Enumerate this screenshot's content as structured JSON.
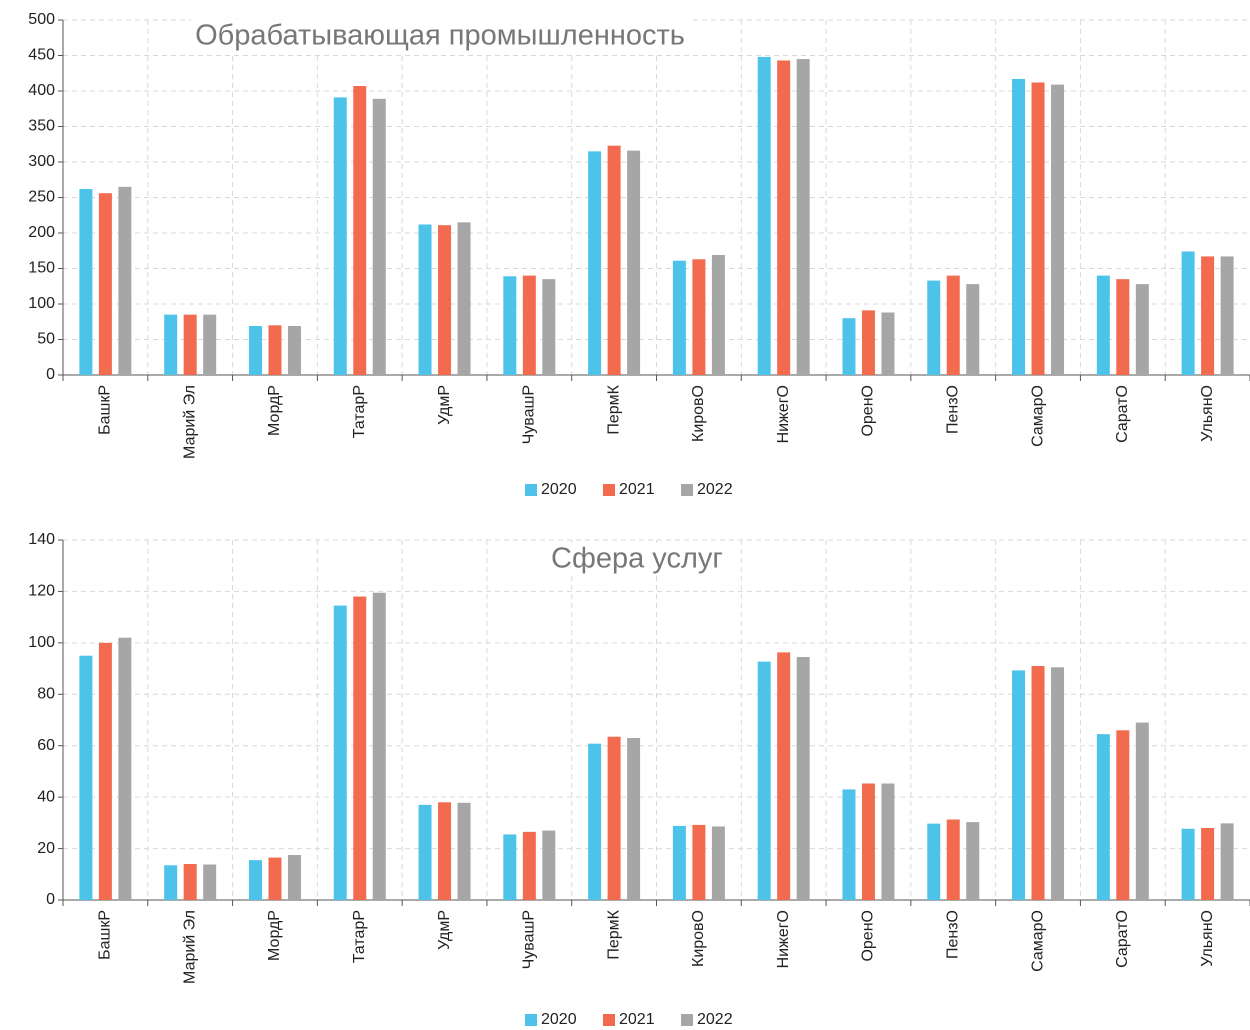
{
  "chart_data": [
    {
      "type": "bar",
      "title": "Обрабатывающая промышленность",
      "categories": [
        "БашкР",
        "Марий Эл",
        "МордР",
        "ТатарР",
        "УдмР",
        "ЧувашР",
        "ПермК",
        "КировО",
        "НижегО",
        "ОренО",
        "ПензО",
        "СамарО",
        "СаратО",
        "УльянО"
      ],
      "series": [
        {
          "name": "2020",
          "color": "#4dc3ea",
          "values": [
            262,
            85,
            69,
            391,
            212,
            139,
            315,
            161,
            448,
            80,
            133,
            417,
            140,
            174
          ]
        },
        {
          "name": "2021",
          "color": "#f26b4f",
          "values": [
            256,
            85,
            70,
            407,
            211,
            140,
            323,
            163,
            443,
            91,
            140,
            412,
            135,
            167
          ]
        },
        {
          "name": "2022",
          "color": "#a6a6a6",
          "values": [
            265,
            85,
            69,
            389,
            215,
            135,
            316,
            169,
            445,
            88,
            128,
            409,
            128,
            167
          ]
        }
      ],
      "ylim": [
        0,
        500
      ],
      "yticks": [
        0,
        50,
        100,
        150,
        200,
        250,
        300,
        350,
        400,
        450,
        500
      ],
      "grid": true,
      "legend": "bottom"
    },
    {
      "type": "bar",
      "title": "Сфера услуг",
      "categories": [
        "БашкР",
        "Марий Эл",
        "МордР",
        "ТатарР",
        "УдмР",
        "ЧувашР",
        "ПермК",
        "КировО",
        "НижегО",
        "ОренО",
        "ПензО",
        "СамарО",
        "СаратО",
        "УльянО"
      ],
      "series": [
        {
          "name": "2020",
          "color": "#4dc3ea",
          "values": [
            95,
            13.5,
            15.5,
            114.5,
            37,
            25.5,
            60.8,
            28.8,
            92.7,
            43,
            29.7,
            89.3,
            64.5,
            27.7
          ]
        },
        {
          "name": "2021",
          "color": "#f26b4f",
          "values": [
            100,
            14,
            16.5,
            118,
            38,
            26.5,
            63.5,
            29.2,
            96.3,
            45.3,
            31.3,
            91,
            66,
            28
          ]
        },
        {
          "name": "2022",
          "color": "#a6a6a6",
          "values": [
            102,
            13.8,
            17.5,
            119.5,
            37.8,
            27,
            63,
            28.6,
            94.5,
            45.3,
            30.3,
            90.5,
            69,
            29.8
          ]
        }
      ],
      "ylim": [
        0,
        140
      ],
      "yticks": [
        0,
        20,
        40,
        60,
        80,
        100,
        120,
        140
      ],
      "grid": true,
      "legend": "bottom"
    }
  ]
}
